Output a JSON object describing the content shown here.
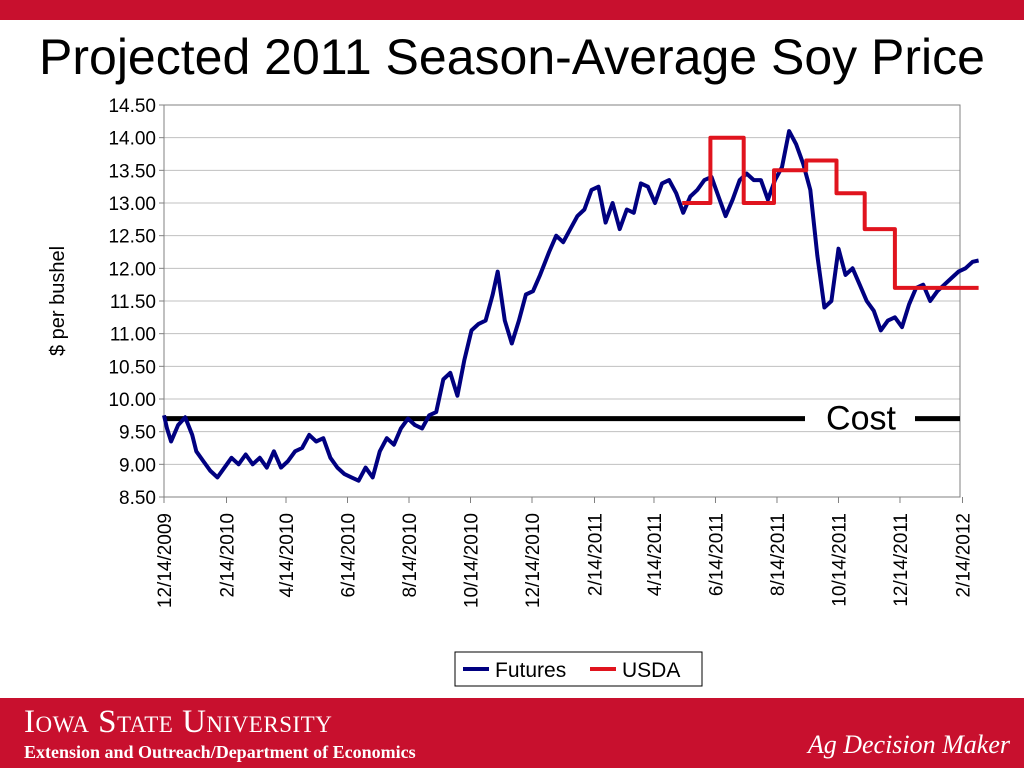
{
  "slide": {
    "title": "Projected 2011 Season-Average Soy Price"
  },
  "footer": {
    "brand": "Iowa State University",
    "department": "Extension and Outreach/Department of Economics",
    "tagline": "Ag Decision Maker"
  },
  "colors": {
    "brand_red": "#c8102e",
    "futures": "#000080",
    "usda": "#e0141e",
    "cost": "#000000"
  },
  "chart_data": {
    "type": "line",
    "title": "",
    "ylabel": "$ per bushel",
    "xlabel": "",
    "ylim": [
      8.5,
      14.5
    ],
    "y_ticks": [
      "14.50",
      "14.00",
      "13.50",
      "13.00",
      "12.50",
      "12.00",
      "11.50",
      "11.00",
      "10.50",
      "10.00",
      "9.50",
      "9.00",
      "8.50"
    ],
    "x_ticks": [
      "12/14/2009",
      "2/14/2010",
      "4/14/2010",
      "6/14/2010",
      "8/14/2010",
      "10/14/2010",
      "12/14/2010",
      "2/14/2011",
      "4/14/2011",
      "6/14/2011",
      "8/14/2011",
      "10/14/2011",
      "12/14/2011",
      "2/14/2012"
    ],
    "grid": true,
    "legend": {
      "position": "bottom-center",
      "entries": [
        "Futures",
        "USDA"
      ]
    },
    "annotation": {
      "text": "Cost",
      "value": 9.7
    },
    "series": [
      {
        "name": "Futures",
        "points": [
          [
            "2009-12-14",
            9.75
          ],
          [
            "2009-12-17",
            9.55
          ],
          [
            "2009-12-21",
            9.35
          ],
          [
            "2009-12-28",
            9.6
          ],
          [
            "2010-01-04",
            9.72
          ],
          [
            "2010-01-11",
            9.45
          ],
          [
            "2010-01-15",
            9.2
          ],
          [
            "2010-01-22",
            9.05
          ],
          [
            "2010-01-29",
            8.9
          ],
          [
            "2010-02-05",
            8.8
          ],
          [
            "2010-02-12",
            8.95
          ],
          [
            "2010-02-19",
            9.1
          ],
          [
            "2010-02-26",
            9.0
          ],
          [
            "2010-03-05",
            9.15
          ],
          [
            "2010-03-12",
            9.0
          ],
          [
            "2010-03-19",
            9.1
          ],
          [
            "2010-03-26",
            8.95
          ],
          [
            "2010-04-02",
            9.2
          ],
          [
            "2010-04-09",
            8.95
          ],
          [
            "2010-04-16",
            9.05
          ],
          [
            "2010-04-23",
            9.2
          ],
          [
            "2010-04-30",
            9.25
          ],
          [
            "2010-05-07",
            9.45
          ],
          [
            "2010-05-14",
            9.35
          ],
          [
            "2010-05-21",
            9.4
          ],
          [
            "2010-05-28",
            9.1
          ],
          [
            "2010-06-04",
            8.95
          ],
          [
            "2010-06-11",
            8.85
          ],
          [
            "2010-06-18",
            8.8
          ],
          [
            "2010-06-25",
            8.75
          ],
          [
            "2010-07-02",
            8.95
          ],
          [
            "2010-07-09",
            8.8
          ],
          [
            "2010-07-16",
            9.2
          ],
          [
            "2010-07-23",
            9.4
          ],
          [
            "2010-07-30",
            9.3
          ],
          [
            "2010-08-06",
            9.55
          ],
          [
            "2010-08-13",
            9.7
          ],
          [
            "2010-08-20",
            9.6
          ],
          [
            "2010-08-27",
            9.55
          ],
          [
            "2010-09-03",
            9.75
          ],
          [
            "2010-09-10",
            9.8
          ],
          [
            "2010-09-17",
            10.3
          ],
          [
            "2010-09-24",
            10.4
          ],
          [
            "2010-10-01",
            10.05
          ],
          [
            "2010-10-08",
            10.6
          ],
          [
            "2010-10-15",
            11.05
          ],
          [
            "2010-10-22",
            11.15
          ],
          [
            "2010-10-29",
            11.2
          ],
          [
            "2010-11-05",
            11.6
          ],
          [
            "2010-11-10",
            11.95
          ],
          [
            "2010-11-17",
            11.2
          ],
          [
            "2010-11-24",
            10.85
          ],
          [
            "2010-12-01",
            11.2
          ],
          [
            "2010-12-08",
            11.6
          ],
          [
            "2010-12-15",
            11.65
          ],
          [
            "2010-12-22",
            11.9
          ],
          [
            "2010-12-31",
            12.25
          ],
          [
            "2011-01-07",
            12.5
          ],
          [
            "2011-01-14",
            12.4
          ],
          [
            "2011-01-21",
            12.6
          ],
          [
            "2011-01-28",
            12.8
          ],
          [
            "2011-02-04",
            12.9
          ],
          [
            "2011-02-11",
            13.2
          ],
          [
            "2011-02-18",
            13.25
          ],
          [
            "2011-02-25",
            12.7
          ],
          [
            "2011-03-04",
            13.0
          ],
          [
            "2011-03-11",
            12.6
          ],
          [
            "2011-03-18",
            12.9
          ],
          [
            "2011-03-25",
            12.85
          ],
          [
            "2011-04-01",
            13.3
          ],
          [
            "2011-04-08",
            13.25
          ],
          [
            "2011-04-15",
            13.0
          ],
          [
            "2011-04-22",
            13.3
          ],
          [
            "2011-04-29",
            13.35
          ],
          [
            "2011-05-06",
            13.15
          ],
          [
            "2011-05-13",
            12.85
          ],
          [
            "2011-05-20",
            13.1
          ],
          [
            "2011-05-27",
            13.2
          ],
          [
            "2011-06-03",
            13.35
          ],
          [
            "2011-06-10",
            13.4
          ],
          [
            "2011-06-17",
            13.1
          ],
          [
            "2011-06-24",
            12.8
          ],
          [
            "2011-07-01",
            13.05
          ],
          [
            "2011-07-08",
            13.35
          ],
          [
            "2011-07-15",
            13.45
          ],
          [
            "2011-07-22",
            13.35
          ],
          [
            "2011-07-29",
            13.35
          ],
          [
            "2011-08-05",
            13.05
          ],
          [
            "2011-08-12",
            13.35
          ],
          [
            "2011-08-19",
            13.55
          ],
          [
            "2011-08-26",
            14.1
          ],
          [
            "2011-09-02",
            13.9
          ],
          [
            "2011-09-09",
            13.6
          ],
          [
            "2011-09-16",
            13.2
          ],
          [
            "2011-09-23",
            12.2
          ],
          [
            "2011-09-30",
            11.4
          ],
          [
            "2011-10-07",
            11.5
          ],
          [
            "2011-10-14",
            12.3
          ],
          [
            "2011-10-21",
            11.9
          ],
          [
            "2011-10-28",
            12.0
          ],
          [
            "2011-11-04",
            11.75
          ],
          [
            "2011-11-11",
            11.5
          ],
          [
            "2011-11-18",
            11.35
          ],
          [
            "2011-11-25",
            11.05
          ],
          [
            "2011-12-02",
            11.2
          ],
          [
            "2011-12-09",
            11.25
          ],
          [
            "2011-12-16",
            11.1
          ],
          [
            "2011-12-23",
            11.45
          ],
          [
            "2011-12-30",
            11.7
          ],
          [
            "2012-01-06",
            11.75
          ],
          [
            "2012-01-13",
            11.5
          ],
          [
            "2012-01-20",
            11.65
          ],
          [
            "2012-01-27",
            11.75
          ],
          [
            "2012-02-03",
            11.85
          ],
          [
            "2012-02-10",
            11.95
          ],
          [
            "2012-02-17",
            12.0
          ],
          [
            "2012-02-24",
            12.1
          ],
          [
            "2012-03-01",
            12.12
          ]
        ]
      },
      {
        "name": "USDA",
        "step": true,
        "points": [
          [
            "2011-05-12",
            13.0
          ],
          [
            "2011-06-09",
            13.0
          ],
          [
            "2011-06-09",
            14.0
          ],
          [
            "2011-07-12",
            14.0
          ],
          [
            "2011-07-12",
            13.0
          ],
          [
            "2011-08-11",
            13.0
          ],
          [
            "2011-08-11",
            13.5
          ],
          [
            "2011-09-12",
            13.5
          ],
          [
            "2011-09-12",
            13.65
          ],
          [
            "2011-10-12",
            13.65
          ],
          [
            "2011-10-12",
            13.15
          ],
          [
            "2011-11-09",
            13.15
          ],
          [
            "2011-11-09",
            12.6
          ],
          [
            "2011-12-09",
            12.6
          ],
          [
            "2011-12-09",
            11.7
          ],
          [
            "2012-03-01",
            11.7
          ]
        ]
      }
    ]
  }
}
